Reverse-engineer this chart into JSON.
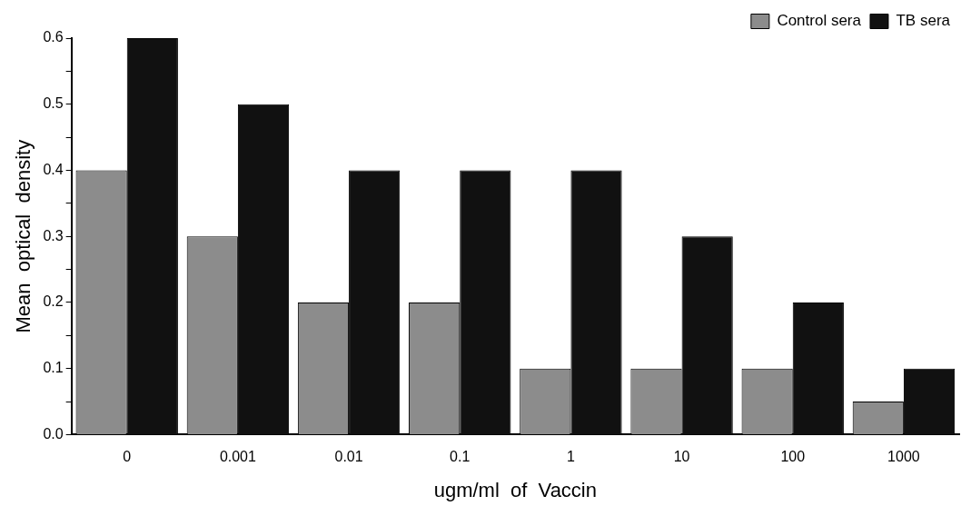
{
  "chart_data": {
    "type": "bar",
    "xlabel": "ugm/ml  of  Vaccin",
    "ylabel": "Mean  optical  density",
    "categories": [
      "0",
      "0.001",
      "0.01",
      "0.1",
      "1",
      "10",
      "100",
      "1000"
    ],
    "series": [
      {
        "name": "Control sera",
        "color": "#8c8c8c",
        "values": [
          0.4,
          0.3,
          0.2,
          0.2,
          0.1,
          0.1,
          0.1,
          0.05
        ]
      },
      {
        "name": "TB sera",
        "color": "#111111",
        "values": [
          0.6,
          0.5,
          0.4,
          0.4,
          0.4,
          0.3,
          0.2,
          0.1
        ]
      }
    ],
    "ylim": [
      0,
      0.6
    ],
    "yticks": [
      {
        "value": 0,
        "label": "0.0"
      },
      {
        "value": 0.05,
        "label": null
      },
      0.1,
      {
        "value": 0.15,
        "label": null
      },
      0.2,
      {
        "value": 0.25,
        "label": null
      },
      0.3,
      {
        "value": 0.35,
        "label": null
      },
      0.4,
      {
        "value": 0.45,
        "label": null
      },
      0.5,
      {
        "value": 0.55,
        "label": null
      },
      0.6
    ],
    "grid": false,
    "legend": "top right"
  }
}
